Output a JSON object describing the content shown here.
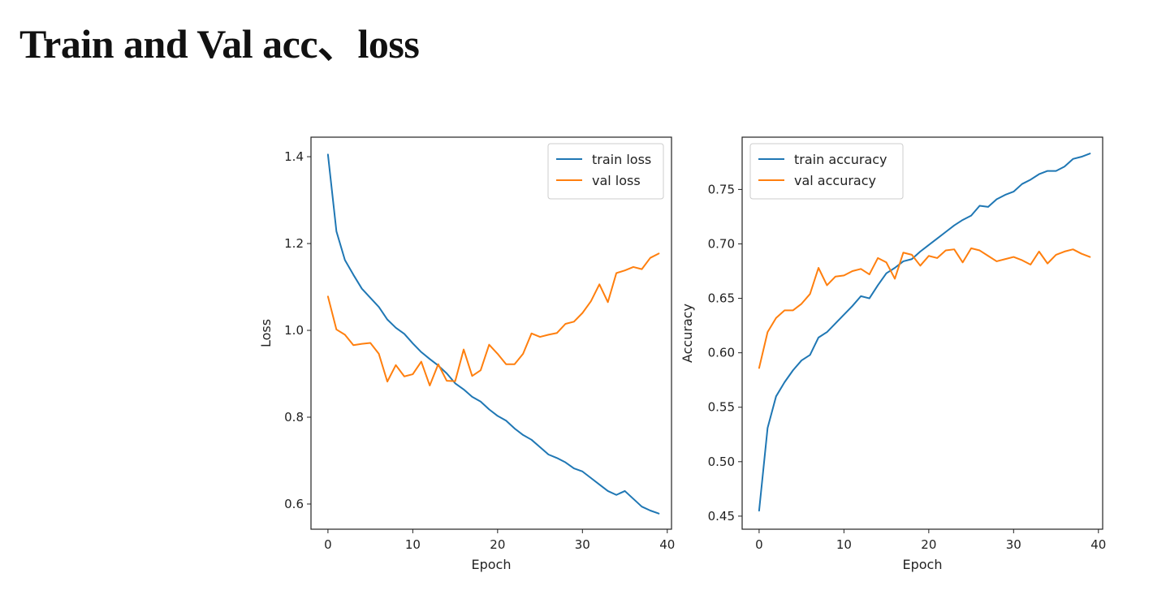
{
  "page": {
    "title": "Train and Val acc、loss"
  },
  "colors": {
    "train": "#1f77b4",
    "val": "#ff7f0e",
    "axis": "#222222"
  },
  "chart_data": [
    {
      "type": "line",
      "xlabel": "Epoch",
      "ylabel": "Loss",
      "xlim": [
        -2,
        40.5
      ],
      "ylim": [
        0.542,
        1.445
      ],
      "xticks": [
        0,
        10,
        20,
        30,
        40
      ],
      "xtick_labels": [
        "0",
        "10",
        "20",
        "30",
        "40"
      ],
      "yticks": [
        0.6,
        0.8,
        1.0,
        1.2,
        1.4
      ],
      "ytick_labels": [
        "0.6",
        "0.8",
        "1.0",
        "1.2",
        "1.4"
      ],
      "legend_position": "top-right",
      "series": [
        {
          "name": "train loss",
          "x": [
            0,
            1,
            2,
            3,
            4,
            5,
            6,
            7,
            8,
            9,
            10,
            11,
            12,
            13,
            14,
            15,
            16,
            17,
            18,
            19,
            20,
            21,
            22,
            23,
            24,
            25,
            26,
            27,
            28,
            29,
            30,
            31,
            32,
            33,
            34,
            35,
            36,
            37,
            38,
            39
          ],
          "values": [
            1.405,
            1.228,
            1.162,
            1.128,
            1.096,
            1.075,
            1.054,
            1.025,
            1.006,
            0.992,
            0.97,
            0.95,
            0.934,
            0.919,
            0.901,
            0.878,
            0.864,
            0.847,
            0.836,
            0.818,
            0.803,
            0.792,
            0.774,
            0.759,
            0.748,
            0.731,
            0.714,
            0.706,
            0.696,
            0.682,
            0.675,
            0.66,
            0.645,
            0.63,
            0.621,
            0.63,
            0.612,
            0.594,
            0.585,
            0.578
          ]
        },
        {
          "name": "val loss",
          "x": [
            0,
            1,
            2,
            3,
            4,
            5,
            6,
            7,
            8,
            9,
            10,
            11,
            12,
            13,
            14,
            15,
            16,
            17,
            18,
            19,
            20,
            21,
            22,
            23,
            24,
            25,
            26,
            27,
            28,
            29,
            30,
            31,
            32,
            33,
            34,
            35,
            36,
            37,
            38,
            39
          ],
          "values": [
            1.078,
            1.002,
            0.99,
            0.966,
            0.969,
            0.971,
            0.946,
            0.882,
            0.92,
            0.894,
            0.899,
            0.928,
            0.873,
            0.922,
            0.884,
            0.883,
            0.956,
            0.895,
            0.908,
            0.967,
            0.946,
            0.922,
            0.922,
            0.946,
            0.993,
            0.985,
            0.99,
            0.994,
            1.015,
            1.02,
            1.04,
            1.067,
            1.106,
            1.065,
            1.132,
            1.138,
            1.146,
            1.141,
            1.167,
            1.177
          ]
        }
      ]
    },
    {
      "type": "line",
      "xlabel": "Epoch",
      "ylabel": "Accuracy",
      "xlim": [
        -2,
        40.5
      ],
      "ylim": [
        0.438,
        0.798
      ],
      "xticks": [
        0,
        10,
        20,
        30,
        40
      ],
      "xtick_labels": [
        "0",
        "10",
        "20",
        "30",
        "40"
      ],
      "yticks": [
        0.45,
        0.5,
        0.55,
        0.6,
        0.65,
        0.7,
        0.75
      ],
      "ytick_labels": [
        "0.45",
        "0.50",
        "0.55",
        "0.60",
        "0.65",
        "0.70",
        "0.75"
      ],
      "legend_position": "top-left",
      "series": [
        {
          "name": "train accuracy",
          "x": [
            0,
            1,
            2,
            3,
            4,
            5,
            6,
            7,
            8,
            9,
            10,
            11,
            12,
            13,
            14,
            15,
            16,
            17,
            18,
            19,
            20,
            21,
            22,
            23,
            24,
            25,
            26,
            27,
            28,
            29,
            30,
            31,
            32,
            33,
            34,
            35,
            36,
            37,
            38,
            39
          ],
          "values": [
            0.455,
            0.531,
            0.56,
            0.573,
            0.584,
            0.593,
            0.598,
            0.614,
            0.619,
            0.627,
            0.635,
            0.643,
            0.652,
            0.65,
            0.662,
            0.673,
            0.678,
            0.684,
            0.686,
            0.693,
            0.699,
            0.705,
            0.711,
            0.717,
            0.722,
            0.726,
            0.735,
            0.734,
            0.741,
            0.745,
            0.748,
            0.755,
            0.759,
            0.764,
            0.767,
            0.767,
            0.771,
            0.778,
            0.78,
            0.783
          ]
        },
        {
          "name": "val accuracy",
          "x": [
            0,
            1,
            2,
            3,
            4,
            5,
            6,
            7,
            8,
            9,
            10,
            11,
            12,
            13,
            14,
            15,
            16,
            17,
            18,
            19,
            20,
            21,
            22,
            23,
            24,
            25,
            26,
            27,
            28,
            29,
            30,
            31,
            32,
            33,
            34,
            35,
            36,
            37,
            38,
            39
          ],
          "values": [
            0.586,
            0.619,
            0.632,
            0.639,
            0.639,
            0.645,
            0.654,
            0.678,
            0.662,
            0.67,
            0.671,
            0.675,
            0.677,
            0.672,
            0.687,
            0.683,
            0.668,
            0.692,
            0.69,
            0.68,
            0.689,
            0.687,
            0.694,
            0.695,
            0.683,
            0.696,
            0.694,
            0.689,
            0.684,
            0.686,
            0.688,
            0.685,
            0.681,
            0.693,
            0.682,
            0.69,
            0.693,
            0.695,
            0.691,
            0.688
          ]
        }
      ]
    }
  ]
}
